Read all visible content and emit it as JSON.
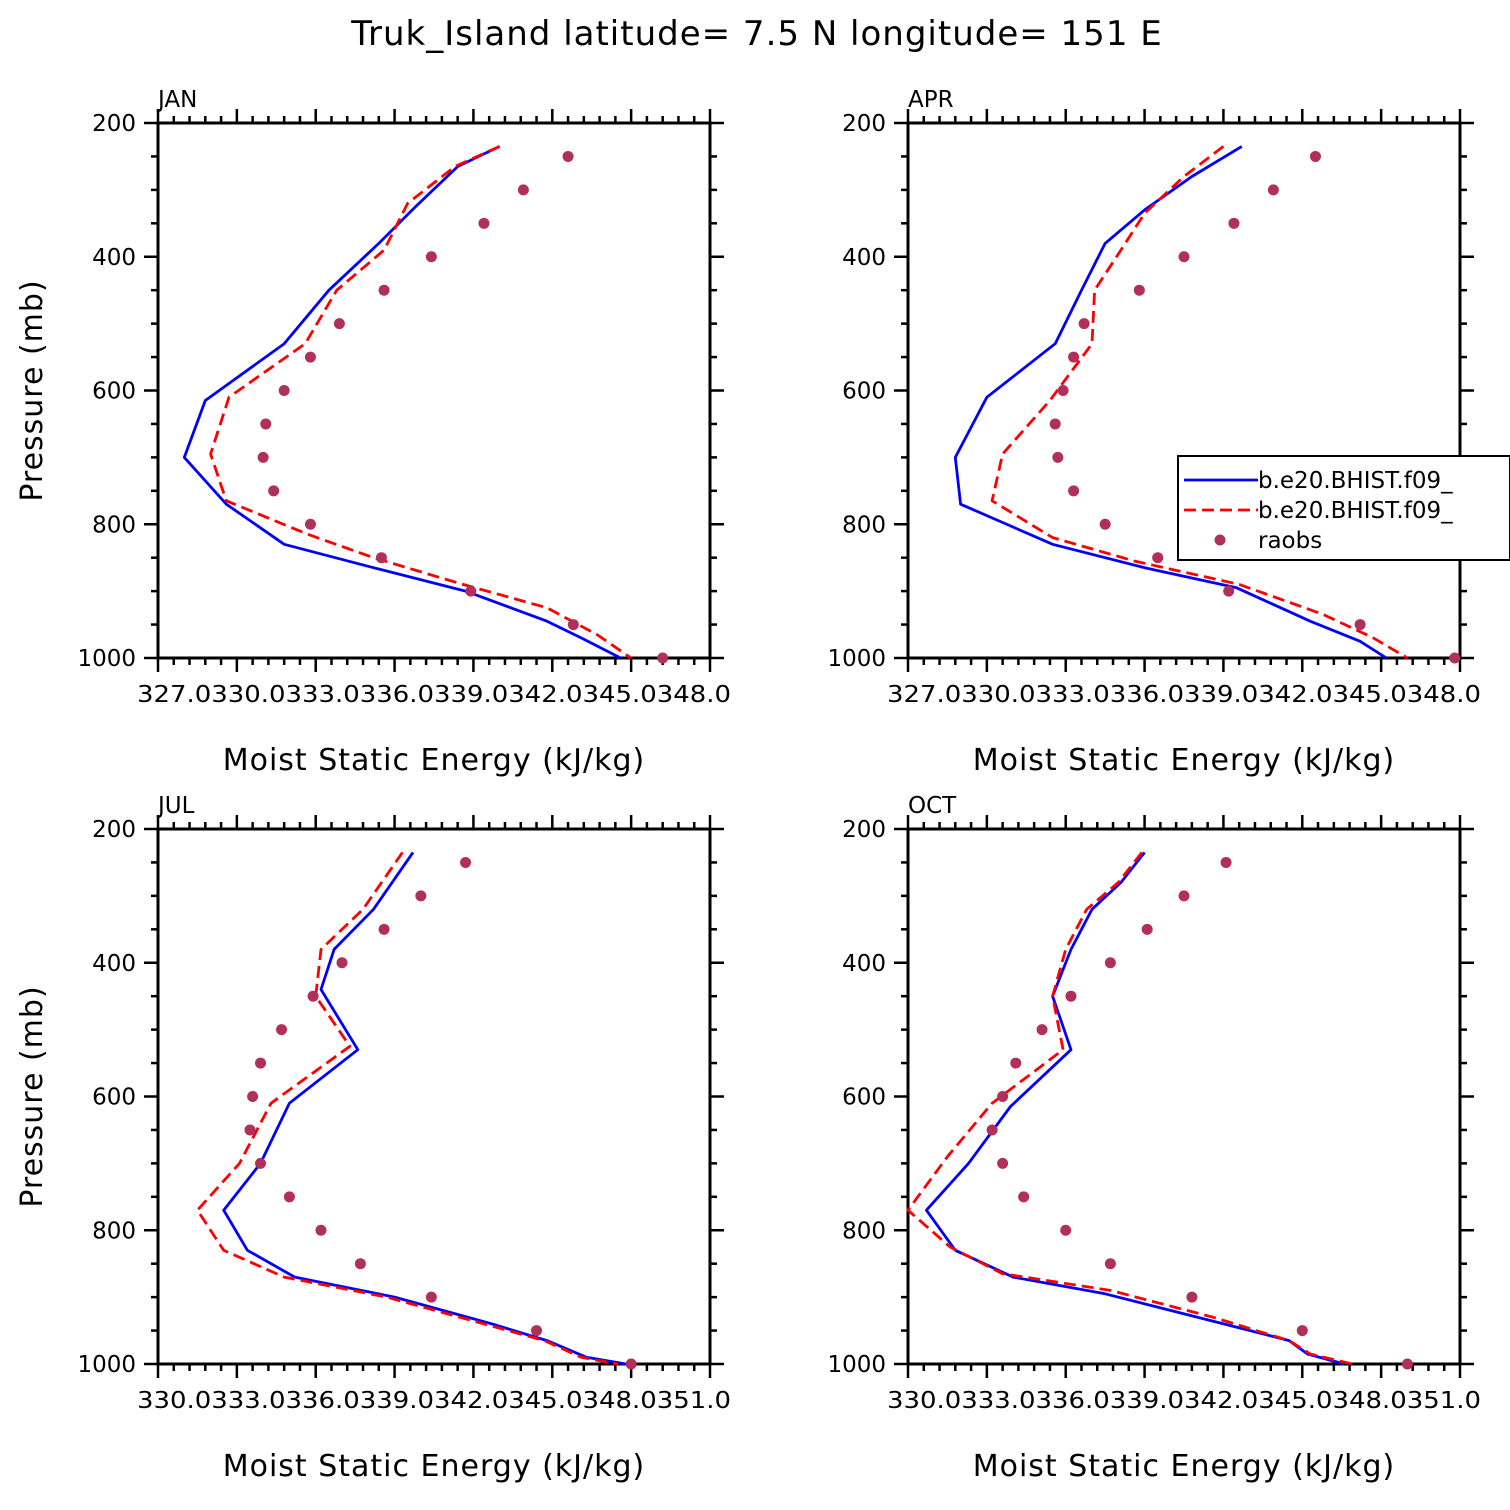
{
  "title": "Truk_Island  latitude= 7.5 N longitude= 151 E",
  "chart_data": [
    {
      "type": "line",
      "panel_label": "JAN",
      "xlabel": "Moist Static Energy (kJ/kg)",
      "ylabel": "Pressure (mb)",
      "xlim": [
        327.0,
        348.0
      ],
      "ylim": [
        1000,
        200
      ],
      "x_ticks": [
        327.0,
        330.0,
        333.0,
        336.0,
        339.0,
        342.0,
        345.0,
        348.0
      ],
      "x_tick_labels": "327.0330.0333.0336.0339.0342.0345.0348.0",
      "y_ticks": [
        200,
        400,
        600,
        800,
        1000
      ],
      "y_tick_labels": [
        "200",
        "400",
        "600",
        "800",
        "1000"
      ],
      "series": [
        {
          "name": "b.e20.BHIST.f09_",
          "style": "solid",
          "color": "#0000ff",
          "x": [
            340.0,
            338.4,
            336.8,
            335.4,
            333.5,
            331.8,
            328.8,
            328.0,
            329.6,
            331.8,
            335.2,
            338.7,
            341.8,
            343.1,
            344.6
          ],
          "y": [
            235,
            265,
            325,
            380,
            450,
            530,
            615,
            700,
            770,
            830,
            865,
            900,
            945,
            970,
            1000
          ]
        },
        {
          "name": "b.e20.BHIST.f09_",
          "style": "dashed",
          "color": "#ff0000",
          "x": [
            340.0,
            338.3,
            336.5,
            335.6,
            333.8,
            332.6,
            329.7,
            329.0,
            329.6,
            332.7,
            335.2,
            338.6,
            341.8,
            343.7,
            345.0
          ],
          "y": [
            235,
            265,
            320,
            390,
            450,
            530,
            610,
            695,
            765,
            815,
            850,
            890,
            925,
            965,
            1000
          ]
        }
      ],
      "raobs": {
        "name": "raobs",
        "color": "#b0305a",
        "x": [
          342.6,
          340.9,
          339.4,
          337.4,
          335.6,
          333.9,
          332.8,
          331.8,
          331.1,
          331.0,
          331.4,
          332.8,
          335.5,
          338.9,
          342.8,
          346.2
        ],
        "y": [
          250,
          300,
          350,
          400,
          450,
          500,
          550,
          600,
          650,
          700,
          750,
          800,
          850,
          900,
          950,
          1000
        ]
      }
    },
    {
      "type": "line",
      "panel_label": "APR",
      "xlabel": "Moist Static Energy (kJ/kg)",
      "ylabel": "",
      "xlim": [
        327.0,
        348.0
      ],
      "ylim": [
        1000,
        200
      ],
      "x_ticks": [
        327.0,
        330.0,
        333.0,
        336.0,
        339.0,
        342.0,
        345.0,
        348.0
      ],
      "x_tick_labels": "327.0330.0333.0336.0339.0342.0345.0348.0",
      "y_ticks": [
        200,
        400,
        600,
        800,
        1000
      ],
      "y_tick_labels": [
        "200",
        "400",
        "600",
        "800",
        "1000"
      ],
      "series": [
        {
          "name": "b.e20.BHIST.f09_",
          "style": "solid",
          "color": "#0000ff",
          "x": [
            339.7,
            337.8,
            336.0,
            334.5,
            333.6,
            332.6,
            330.0,
            328.8,
            329.0,
            332.5,
            336.0,
            339.5,
            342.3,
            344.2,
            345.2
          ],
          "y": [
            235,
            280,
            330,
            380,
            450,
            530,
            610,
            700,
            770,
            830,
            865,
            895,
            945,
            975,
            1000
          ]
        },
        {
          "name": "b.e20.BHIST.f09_",
          "style": "dashed",
          "color": "#ff0000",
          "x": [
            339.0,
            337.5,
            336.0,
            335.1,
            334.1,
            334.0,
            332.4,
            330.6,
            330.2,
            332.5,
            335.6,
            339.6,
            342.8,
            344.7,
            346.0
          ],
          "y": [
            235,
            280,
            335,
            390,
            450,
            530,
            615,
            695,
            765,
            820,
            855,
            890,
            935,
            970,
            1000
          ]
        }
      ],
      "raobs": {
        "name": "raobs",
        "color": "#b0305a",
        "x": [
          342.5,
          340.9,
          339.4,
          337.5,
          335.8,
          333.7,
          333.3,
          332.9,
          332.6,
          332.7,
          333.3,
          334.5,
          336.5,
          339.2,
          344.2,
          347.8
        ],
        "y": [
          250,
          300,
          350,
          400,
          450,
          500,
          550,
          600,
          650,
          700,
          750,
          800,
          850,
          900,
          950,
          1000
        ]
      },
      "legend": {
        "position": "right",
        "entries": [
          {
            "label": "b.e20.BHIST.f09_",
            "style": "solid",
            "color": "#0000ff"
          },
          {
            "label": "b.e20.BHIST.f09_",
            "style": "dashed",
            "color": "#ff0000"
          },
          {
            "label": "raobs",
            "style": "marker",
            "color": "#b0305a"
          }
        ]
      }
    },
    {
      "type": "line",
      "panel_label": "JUL",
      "xlabel": "Moist Static Energy (kJ/kg)",
      "ylabel": "Pressure (mb)",
      "xlim": [
        330.0,
        351.0
      ],
      "ylim": [
        1000,
        200
      ],
      "x_ticks": [
        330.0,
        333.0,
        336.0,
        339.0,
        342.0,
        345.0,
        348.0,
        351.0
      ],
      "x_tick_labels": "330.0333.0336.0339.0342.0345.0348.0351.0",
      "y_ticks": [
        200,
        400,
        600,
        800,
        1000
      ],
      "y_tick_labels": [
        "200",
        "400",
        "600",
        "800",
        "1000"
      ],
      "series": [
        {
          "name": "b.e20.BHIST.f09_",
          "style": "solid",
          "color": "#0000ff",
          "x": [
            339.7,
            338.2,
            336.7,
            336.2,
            337.6,
            335.0,
            333.9,
            332.5,
            333.4,
            335.2,
            339.0,
            342.7,
            344.8,
            346.3,
            347.8
          ],
          "y": [
            235,
            320,
            380,
            440,
            530,
            610,
            700,
            770,
            830,
            870,
            900,
            940,
            965,
            990,
            1000
          ]
        },
        {
          "name": "b.e20.BHIST.f09_",
          "style": "dashed",
          "color": "#ff0000",
          "x": [
            339.3,
            337.8,
            336.2,
            336.0,
            337.3,
            334.3,
            333.1,
            331.5,
            332.5,
            334.8,
            338.7,
            342.4,
            344.7,
            346.1,
            347.5
          ],
          "y": [
            235,
            320,
            380,
            450,
            525,
            610,
            700,
            770,
            830,
            870,
            900,
            940,
            965,
            990,
            1000
          ]
        }
      ],
      "raobs": {
        "name": "raobs",
        "color": "#b0305a",
        "x": [
          341.7,
          340.0,
          338.6,
          337.0,
          335.9,
          334.7,
          333.9,
          333.6,
          333.5,
          333.9,
          335.0,
          336.2,
          337.7,
          340.4,
          344.4,
          348.0
        ],
        "y": [
          250,
          300,
          350,
          400,
          450,
          500,
          550,
          600,
          650,
          700,
          750,
          800,
          850,
          900,
          950,
          1000
        ]
      }
    },
    {
      "type": "line",
      "panel_label": "OCT",
      "xlabel": "Moist Static Energy (kJ/kg)",
      "ylabel": "",
      "xlim": [
        330.0,
        351.0
      ],
      "ylim": [
        1000,
        200
      ],
      "x_ticks": [
        330.0,
        333.0,
        336.0,
        339.0,
        342.0,
        345.0,
        348.0,
        351.0
      ],
      "x_tick_labels": "330.0333.0336.0339.0342.0345.0348.0351.0",
      "y_ticks": [
        200,
        400,
        600,
        800,
        1000
      ],
      "y_tick_labels": [
        "200",
        "400",
        "600",
        "800",
        "1000"
      ],
      "series": [
        {
          "name": "b.e20.BHIST.f09_",
          "style": "solid",
          "color": "#0000ff",
          "x": [
            339.0,
            338.1,
            337.0,
            336.2,
            335.5,
            336.2,
            333.9,
            332.3,
            330.7,
            331.8,
            334.0,
            337.5,
            341.5,
            344.5,
            345.2,
            346.6
          ],
          "y": [
            235,
            280,
            320,
            380,
            450,
            530,
            615,
            700,
            770,
            830,
            870,
            895,
            935,
            965,
            985,
            1000
          ]
        },
        {
          "name": "b.e20.BHIST.f09_",
          "style": "dashed",
          "color": "#ff0000",
          "x": [
            338.9,
            338.0,
            336.8,
            336.0,
            335.5,
            335.9,
            333.2,
            331.5,
            330.0,
            331.6,
            333.6,
            337.7,
            341.6,
            344.5,
            345.3,
            346.9
          ],
          "y": [
            235,
            280,
            320,
            380,
            450,
            530,
            610,
            690,
            770,
            825,
            865,
            890,
            930,
            965,
            985,
            1000
          ]
        }
      ],
      "raobs": {
        "name": "raobs",
        "color": "#b0305a",
        "x": [
          342.1,
          340.5,
          339.1,
          337.7,
          336.2,
          335.1,
          334.1,
          333.6,
          333.2,
          333.6,
          334.4,
          336.0,
          337.7,
          340.8,
          345.0,
          349.0
        ],
        "y": [
          250,
          300,
          350,
          400,
          450,
          500,
          550,
          600,
          650,
          700,
          750,
          800,
          850,
          900,
          950,
          1000
        ]
      }
    }
  ]
}
